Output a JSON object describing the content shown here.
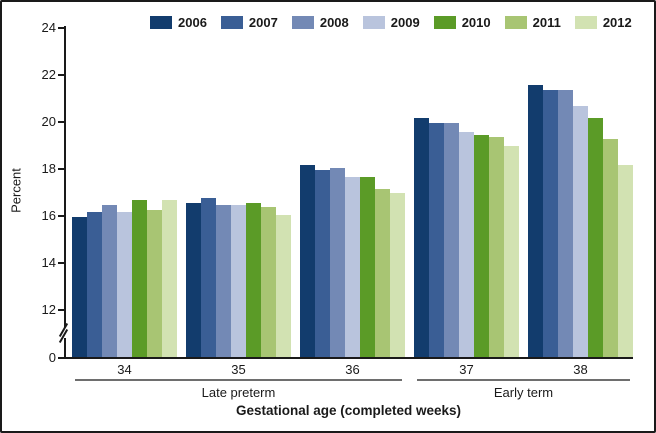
{
  "chart_data": {
    "type": "bar",
    "title": "",
    "ylabel": "Percent",
    "xlabel": "Gestational age (completed weeks)",
    "categories": [
      "34",
      "35",
      "36",
      "37",
      "38"
    ],
    "category_groups": [
      {
        "label": "Late preterm",
        "span": [
          0,
          2
        ]
      },
      {
        "label": "Early term",
        "span": [
          3,
          4
        ]
      }
    ],
    "series": [
      {
        "name": "2006",
        "color": "#123c6d",
        "values": [
          15.9,
          16.5,
          18.1,
          20.1,
          21.5
        ]
      },
      {
        "name": "2007",
        "color": "#3a5e95",
        "values": [
          16.1,
          16.7,
          17.9,
          19.9,
          21.3
        ]
      },
      {
        "name": "2008",
        "color": "#7389b5",
        "values": [
          16.4,
          16.4,
          18.0,
          19.9,
          21.3
        ]
      },
      {
        "name": "2009",
        "color": "#b9c4dd",
        "values": [
          16.1,
          16.4,
          17.6,
          19.5,
          20.6
        ]
      },
      {
        "name": "2010",
        "color": "#5b9b27",
        "values": [
          16.6,
          16.5,
          17.6,
          19.4,
          20.1
        ]
      },
      {
        "name": "2011",
        "color": "#a8c573",
        "values": [
          16.2,
          16.3,
          17.1,
          19.3,
          19.2
        ]
      },
      {
        "name": "2012",
        "color": "#d2e2b2",
        "values": [
          16.6,
          16.0,
          16.9,
          18.9,
          18.1
        ]
      }
    ],
    "y_ticks": [
      24,
      22,
      20,
      18,
      16,
      14,
      12,
      0
    ],
    "axis_break": "between 0 and 12",
    "legend_position": "top",
    "grid": "off"
  }
}
